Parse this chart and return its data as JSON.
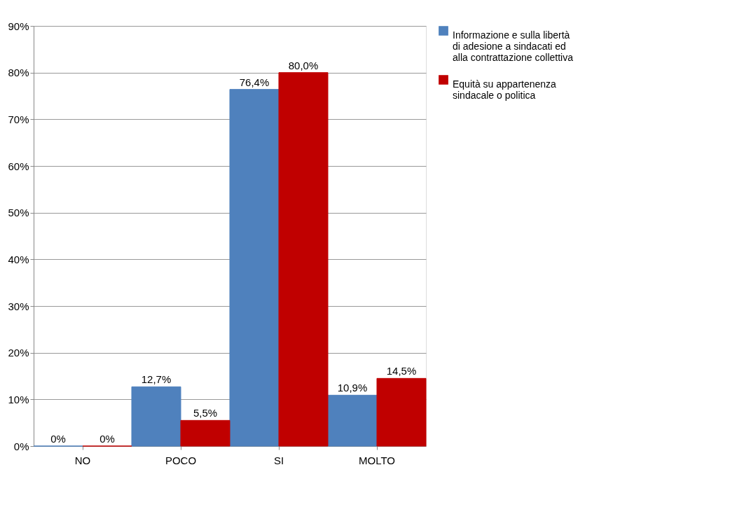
{
  "chart_data": {
    "type": "bar",
    "categories": [
      "NO",
      "POCO",
      "SI",
      "MOLTO"
    ],
    "series": [
      {
        "name": "Informazione e sulla libertà di adesione a sindacati ed alla contrattazione collettiva",
        "color": "#4f81bd",
        "values": [
          0,
          12.7,
          76.4,
          10.9
        ],
        "value_labels": [
          "0%",
          "12,7%",
          "76,4%",
          "10,9%"
        ]
      },
      {
        "name": "Equità su appartenenza sindacale o politica",
        "color": "#c00000",
        "values": [
          0,
          5.5,
          80.0,
          14.5
        ],
        "value_labels": [
          "0%",
          "5,5%",
          "80,0%",
          "14,5%"
        ]
      }
    ],
    "ylim": [
      0,
      90
    ],
    "yticks": [
      {
        "value": 0,
        "label": "0%"
      },
      {
        "value": 10,
        "label": "10%"
      },
      {
        "value": 20,
        "label": "20%"
      },
      {
        "value": 30,
        "label": "30%"
      },
      {
        "value": 40,
        "label": "40%"
      },
      {
        "value": 50,
        "label": "50%"
      },
      {
        "value": 60,
        "label": "60%"
      },
      {
        "value": 70,
        "label": "70%"
      },
      {
        "value": 80,
        "label": "80%"
      },
      {
        "value": 90,
        "label": "90%"
      }
    ],
    "grid": "y",
    "legend": "right"
  }
}
